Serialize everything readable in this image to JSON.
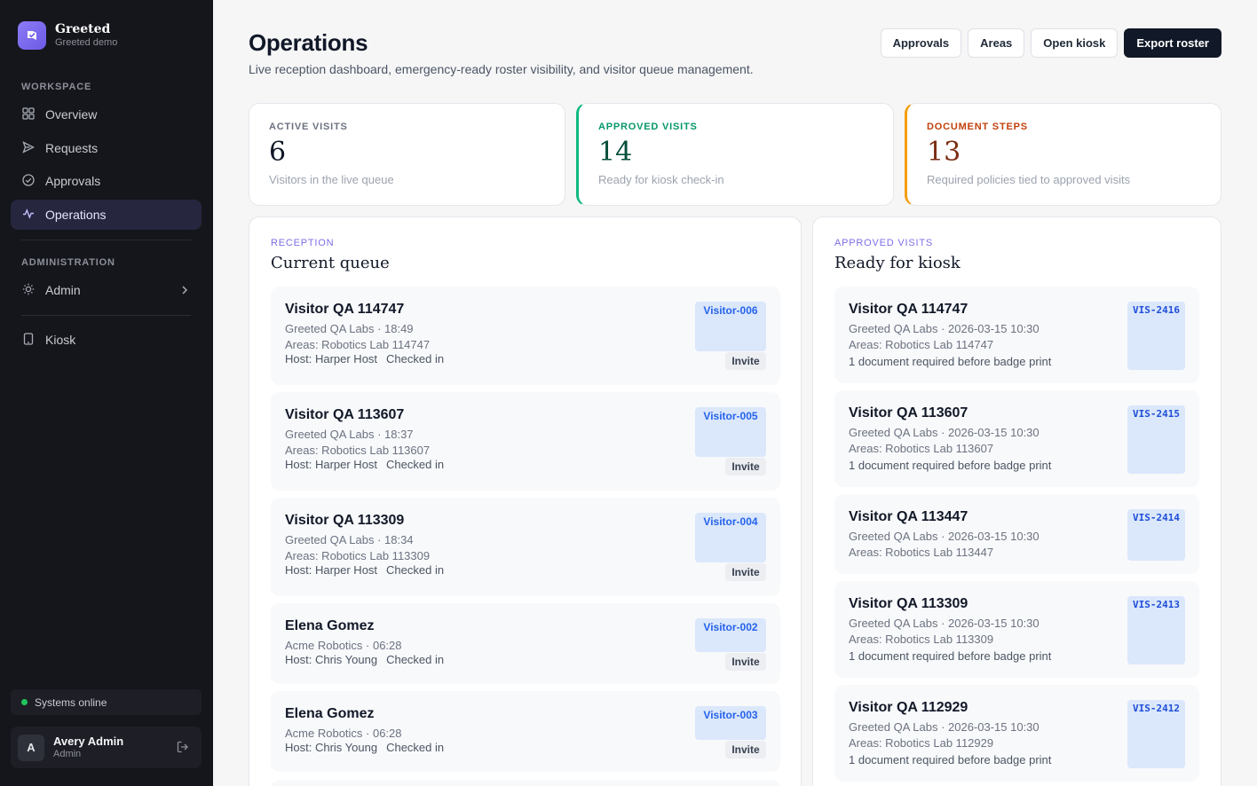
{
  "brand": {
    "name": "Greeted",
    "subtitle": "Greeted demo"
  },
  "sidebar": {
    "workspace_label": "WORKSPACE",
    "items": [
      {
        "label": "Overview",
        "icon": "grid-icon"
      },
      {
        "label": "Requests",
        "icon": "send-icon"
      },
      {
        "label": "Approvals",
        "icon": "check-circle-icon"
      },
      {
        "label": "Operations",
        "icon": "activity-icon",
        "active": true
      }
    ],
    "admin_label": "ADMINISTRATION",
    "admin_item": {
      "label": "Admin",
      "icon": "sun-icon"
    },
    "kiosk_item": {
      "label": "Kiosk",
      "icon": "tablet-icon"
    },
    "status": "Systems online",
    "user": {
      "initial": "A",
      "name": "Avery Admin",
      "role": "Admin"
    }
  },
  "header": {
    "title": "Operations",
    "subtitle": "Live reception dashboard, emergency-ready roster visibility, and visitor queue management.",
    "buttons": [
      "Approvals",
      "Areas",
      "Open kiosk",
      "Export roster"
    ]
  },
  "stats": [
    {
      "label": "ACTIVE VISITS",
      "value": "6",
      "desc": "Visitors in the live queue"
    },
    {
      "label": "APPROVED VISITS",
      "value": "14",
      "desc": "Ready for kiosk check-in"
    },
    {
      "label": "DOCUMENT STEPS",
      "value": "13",
      "desc": "Required policies tied to approved visits"
    }
  ],
  "queue": {
    "eyebrow": "RECEPTION",
    "title": "Current queue",
    "items": [
      {
        "name": "Visitor QA 114747",
        "meta": "Greeted QA Labs · 18:49",
        "areas": "Areas: Robotics Lab 114747",
        "host": "Host: Harper Host",
        "status": "Checked in",
        "badge": "Visitor-006",
        "action": "Invite"
      },
      {
        "name": "Visitor QA 113607",
        "meta": "Greeted QA Labs · 18:37",
        "areas": "Areas: Robotics Lab 113607",
        "host": "Host: Harper Host",
        "status": "Checked in",
        "badge": "Visitor-005",
        "action": "Invite"
      },
      {
        "name": "Visitor QA 113309",
        "meta": "Greeted QA Labs · 18:34",
        "areas": "Areas: Robotics Lab 113309",
        "host": "Host: Harper Host",
        "status": "Checked in",
        "badge": "Visitor-004",
        "action": "Invite"
      },
      {
        "name": "Elena Gomez",
        "meta": "Acme Robotics · 06:28",
        "host": "Host: Chris Young",
        "status": "Checked in",
        "badge": "Visitor-002",
        "action": "Invite"
      },
      {
        "name": "Elena Gomez",
        "meta": "Acme Robotics · 06:28",
        "host": "Host: Chris Young",
        "status": "Checked in",
        "badge": "Visitor-003",
        "action": "Invite"
      }
    ]
  },
  "kiosk": {
    "eyebrow": "APPROVED VISITS",
    "title": "Ready for kiosk",
    "items": [
      {
        "name": "Visitor QA 114747",
        "meta": "Greeted QA Labs · 2026-03-15 10:30",
        "areas": "Areas: Robotics Lab 114747",
        "doc": "1 document required before badge print",
        "badge": "VIS-2416"
      },
      {
        "name": "Visitor QA 113607",
        "meta": "Greeted QA Labs · 2026-03-15 10:30",
        "areas": "Areas: Robotics Lab 113607",
        "doc": "1 document required before badge print",
        "badge": "VIS-2415"
      },
      {
        "name": "Visitor QA 113447",
        "meta": "Greeted QA Labs · 2026-03-15 10:30",
        "areas": "Areas: Robotics Lab 113447",
        "badge": "VIS-2414"
      },
      {
        "name": "Visitor QA 113309",
        "meta": "Greeted QA Labs · 2026-03-15 10:30",
        "areas": "Areas: Robotics Lab 113309",
        "doc": "1 document required before badge print",
        "badge": "VIS-2413"
      },
      {
        "name": "Visitor QA 112929",
        "meta": "Greeted QA Labs · 2026-03-15 10:30",
        "areas": "Areas: Robotics Lab 112929",
        "doc": "1 document required before badge print",
        "badge": "VIS-2412"
      }
    ]
  },
  "colors": {
    "accent": "#7c6ee6",
    "sidebar_bg": "#15161b",
    "success": "#10b981",
    "warning": "#f59e0b",
    "badge_bg": "#dbe7fb"
  }
}
